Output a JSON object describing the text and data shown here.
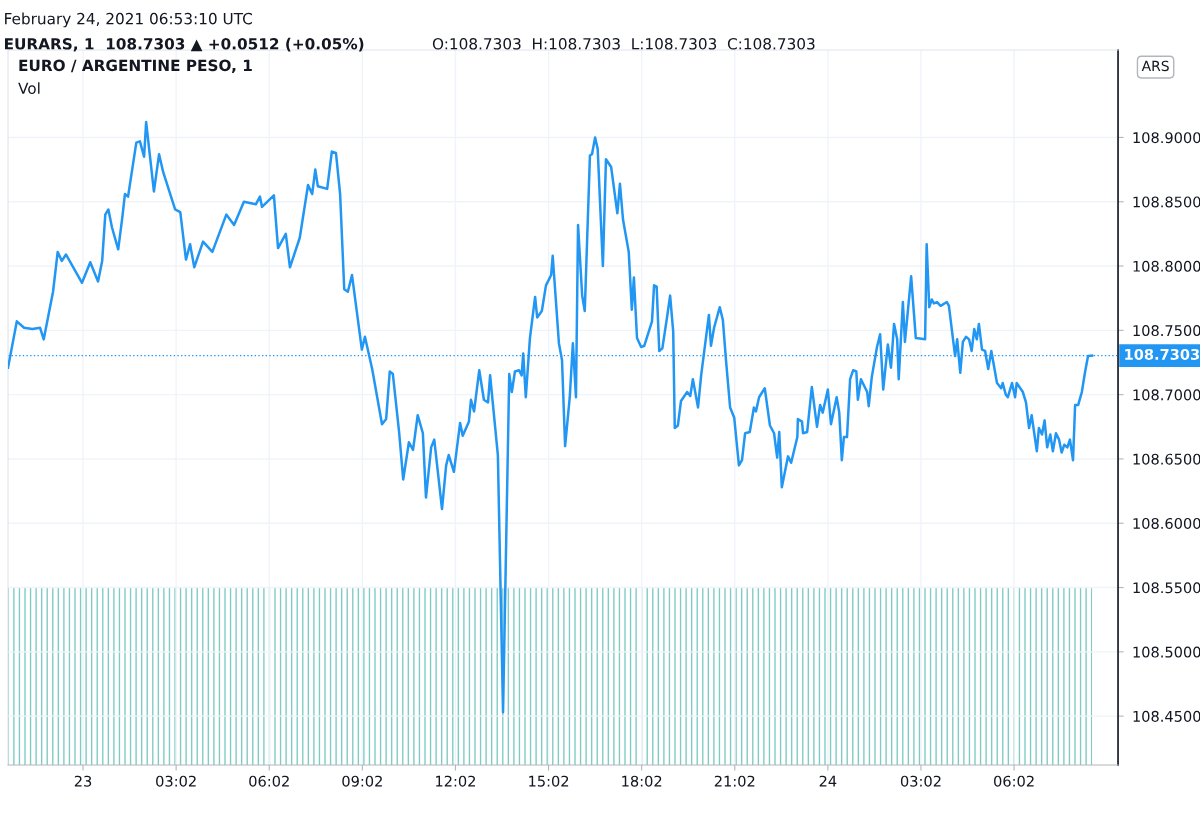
{
  "chart_data": {
    "type": "line",
    "title": "EURO / ARGENTINE PESO, 1",
    "annotations": [
      "February 24, 2021 06:53:10 UTC",
      "EURARS, 1  108.7303 ▲ +0.0512 (+0.05%)",
      "O:108.7303  H:108.7303  L:108.7303  C:108.7303",
      "ARS",
      "Vol"
    ],
    "x": [
      "2021-02-22T21:37",
      "2021-02-22T21:54",
      "2021-02-22T22:08",
      "2021-02-22T22:24",
      "2021-02-22T22:39",
      "2021-02-22T22:46",
      "2021-02-22T23:04",
      "2021-02-22T23:13",
      "2021-02-22T23:21",
      "2021-02-22T23:29",
      "2021-02-23T00:00",
      "2021-02-23T00:16",
      "2021-02-23T00:31",
      "2021-02-23T00:39",
      "2021-02-23T00:45",
      "2021-02-23T00:51",
      "2021-02-23T00:58",
      "2021-02-23T01:10",
      "2021-02-23T01:18",
      "2021-02-23T01:23",
      "2021-02-23T01:29",
      "2021-02-23T01:45",
      "2021-02-23T01:52",
      "2021-02-23T02:00",
      "2021-02-23T02:04",
      "2021-02-23T02:19",
      "2021-02-23T02:29",
      "2021-02-23T02:37",
      "2021-02-23T03:00",
      "2021-02-23T03:10",
      "2021-02-23T03:21",
      "2021-02-23T03:29",
      "2021-02-23T03:37",
      "2021-02-23T03:54",
      "2021-02-23T04:12",
      "2021-02-23T04:39",
      "2021-02-23T04:54",
      "2021-02-23T05:13",
      "2021-02-23T05:36",
      "2021-02-23T05:44",
      "2021-02-23T05:48",
      "2021-02-23T06:11",
      "2021-02-23T06:19",
      "2021-02-23T06:34",
      "2021-02-23T06:42",
      "2021-02-23T07:01",
      "2021-02-23T07:17",
      "2021-02-23T07:25",
      "2021-02-23T07:31",
      "2021-02-23T07:36",
      "2021-02-23T07:54",
      "2021-02-23T08:03",
      "2021-02-23T08:11",
      "2021-02-23T08:19",
      "2021-02-23T08:27",
      "2021-02-23T08:34",
      "2021-02-23T08:42",
      "2021-02-23T09:01",
      "2021-02-23T09:07",
      "2021-02-23T09:21",
      "2021-02-23T09:40",
      "2021-02-23T09:48",
      "2021-02-23T09:55",
      "2021-02-23T10:01",
      "2021-02-23T10:13",
      "2021-02-23T10:21",
      "2021-02-23T10:32",
      "2021-02-23T10:40",
      "2021-02-23T10:49",
      "2021-02-23T10:59",
      "2021-02-23T11:05",
      "2021-02-23T11:15",
      "2021-02-23T11:21",
      "2021-02-23T11:36",
      "2021-02-23T11:44",
      "2021-02-23T11:49",
      "2021-02-23T11:59",
      "2021-02-23T12:11",
      "2021-02-23T12:16",
      "2021-02-23T12:28",
      "2021-02-23T12:32",
      "2021-02-23T12:38",
      "2021-02-23T12:48",
      "2021-02-23T12:57",
      "2021-02-23T13:05",
      "2021-02-23T13:09",
      "2021-02-23T13:24",
      "2021-02-23T13:34",
      "2021-02-23T13:46",
      "2021-02-23T13:51",
      "2021-02-23T13:57",
      "2021-02-23T14:05",
      "2021-02-23T14:10",
      "2021-02-23T14:13",
      "2021-02-23T14:18",
      "2021-02-23T14:26",
      "2021-02-23T14:36",
      "2021-02-23T14:40",
      "2021-02-23T14:49",
      "2021-02-23T14:57",
      "2021-02-23T15:07",
      "2021-02-23T15:10",
      "2021-02-23T15:22",
      "2021-02-23T15:28",
      "2021-02-23T15:34",
      "2021-02-23T15:43",
      "2021-02-23T15:49",
      "2021-02-23T15:55",
      "2021-02-23T15:59",
      "2021-02-23T16:07",
      "2021-02-23T16:12",
      "2021-02-23T16:22",
      "2021-02-23T16:26",
      "2021-02-23T16:32",
      "2021-02-23T16:37",
      "2021-02-23T16:47",
      "2021-02-23T16:53",
      "2021-02-23T17:03",
      "2021-02-23T17:15",
      "2021-02-23T17:20",
      "2021-02-23T17:26",
      "2021-02-23T17:37",
      "2021-02-23T17:43",
      "2021-02-23T17:47",
      "2021-02-23T17:53",
      "2021-02-23T18:01",
      "2021-02-23T18:07",
      "2021-02-23T18:22",
      "2021-02-23T18:26",
      "2021-02-23T18:31",
      "2021-02-23T18:36",
      "2021-02-23T18:42",
      "2021-02-23T18:51",
      "2021-02-23T18:57",
      "2021-02-23T19:03",
      "2021-02-23T19:06",
      "2021-02-23T19:12",
      "2021-02-23T19:18",
      "2021-02-23T19:30",
      "2021-02-23T19:36",
      "2021-02-23T19:41",
      "2021-02-23T19:51",
      "2021-02-23T19:57",
      "2021-02-23T20:12",
      "2021-02-23T20:16",
      "2021-02-23T20:22",
      "2021-02-23T20:33",
      "2021-02-23T20:39",
      "2021-02-23T20:45",
      "2021-02-23T20:53",
      "2021-02-23T21:01",
      "2021-02-23T21:10",
      "2021-02-23T21:16",
      "2021-02-23T21:22",
      "2021-02-23T21:31",
      "2021-02-23T21:39",
      "2021-02-23T21:43",
      "2021-02-23T21:49",
      "2021-02-23T22:00",
      "2021-02-23T22:10",
      "2021-02-23T22:18",
      "2021-02-23T22:24",
      "2021-02-23T22:28",
      "2021-02-23T22:33",
      "2021-02-23T22:45",
      "2021-02-23T22:51",
      "2021-02-23T23:03",
      "2021-02-23T23:04",
      "2021-02-23T23:12",
      "2021-02-23T23:14",
      "2021-02-23T23:22",
      "2021-02-23T23:31",
      "2021-02-23T23:41",
      "2021-02-23T23:47",
      "2021-02-23T23:52",
      "2021-02-24T00:02",
      "2021-02-24T00:08",
      "2021-02-24T00:19",
      "2021-02-24T00:24",
      "2021-02-24T00:29",
      "2021-02-24T00:33",
      "2021-02-24T00:39",
      "2021-02-24T00:45",
      "2021-02-24T00:51",
      "2021-02-24T00:57",
      "2021-02-24T01:00",
      "2021-02-24T01:06",
      "2021-02-24T01:18",
      "2021-02-24T01:21",
      "2021-02-24T01:27",
      "2021-02-24T01:37",
      "2021-02-24T01:43",
      "2021-02-24T01:49",
      "2021-02-24T01:58",
      "2021-02-24T02:04",
      "2021-02-24T02:10",
      "2021-02-24T02:16",
      "2021-02-24T02:19",
      "2021-02-24T02:27",
      "2021-02-24T02:31",
      "2021-02-24T02:43",
      "2021-02-24T02:52",
      "2021-02-24T03:10",
      "2021-02-24T03:13",
      "2021-02-24T03:18",
      "2021-02-24T03:23",
      "2021-02-24T03:27",
      "2021-02-24T03:33",
      "2021-02-24T03:40",
      "2021-02-24T03:52",
      "2021-02-24T03:56",
      "2021-02-24T04:08",
      "2021-02-24T04:12",
      "2021-02-24T04:18",
      "2021-02-24T04:23",
      "2021-02-24T04:29",
      "2021-02-24T04:35",
      "2021-02-24T04:40",
      "2021-02-24T04:45",
      "2021-02-24T04:50",
      "2021-02-24T04:54",
      "2021-02-24T05:00",
      "2021-02-24T05:06",
      "2021-02-24T05:12",
      "2021-02-24T05:18",
      "2021-02-24T05:29",
      "2021-02-24T05:37",
      "2021-02-24T05:40",
      "2021-02-24T05:46",
      "2021-02-24T05:50",
      "2021-02-24T05:58",
      "2021-02-24T06:04",
      "2021-02-24T06:07",
      "2021-02-24T06:19",
      "2021-02-24T06:25",
      "2021-02-24T06:31",
      "2021-02-24T06:36",
      "2021-02-24T06:46",
      "2021-02-24T06:50",
      "2021-02-24T06:56",
      "2021-02-24T07:01",
      "2021-02-24T07:06",
      "2021-02-24T07:12",
      "2021-02-24T07:17",
      "2021-02-24T07:23",
      "2021-02-24T07:29",
      "2021-02-24T07:34",
      "2021-02-24T07:39",
      "2021-02-24T07:45",
      "2021-02-24T07:50",
      "2021-02-24T07:56",
      "2021-02-24T08:00",
      "2021-02-24T08:06",
      "2021-02-24T08:13",
      "2021-02-24T08:19",
      "2021-02-24T08:25",
      "2021-02-24T08:33"
    ],
    "series": [
      {
        "color": "#2196f3",
        "values": [
          108.721,
          108.757,
          108.752,
          108.751,
          108.752,
          108.743,
          108.78,
          108.811,
          108.804,
          108.809,
          108.787,
          108.803,
          108.788,
          108.804,
          108.84,
          108.844,
          108.83,
          108.813,
          108.838,
          108.856,
          108.854,
          108.896,
          108.897,
          108.885,
          108.912,
          108.858,
          108.887,
          108.873,
          108.844,
          108.842,
          108.805,
          108.817,
          108.799,
          108.819,
          108.811,
          108.84,
          108.832,
          108.85,
          108.848,
          108.854,
          108.846,
          108.855,
          108.814,
          108.825,
          108.799,
          108.822,
          108.863,
          108.856,
          108.875,
          108.862,
          108.86,
          108.889,
          108.888,
          108.856,
          108.782,
          108.78,
          108.793,
          108.735,
          108.745,
          108.72,
          108.677,
          108.681,
          108.718,
          108.716,
          108.671,
          108.634,
          108.663,
          108.657,
          108.684,
          108.67,
          108.62,
          108.659,
          108.665,
          108.611,
          108.645,
          108.653,
          108.64,
          108.678,
          108.668,
          108.679,
          108.696,
          108.687,
          108.719,
          108.696,
          108.694,
          108.715,
          108.653,
          108.453,
          108.716,
          108.702,
          108.718,
          108.719,
          108.715,
          108.732,
          108.698,
          108.744,
          108.776,
          108.76,
          108.765,
          108.785,
          108.793,
          108.808,
          108.74,
          108.727,
          108.66,
          108.698,
          108.74,
          108.698,
          108.832,
          108.777,
          108.765,
          108.886,
          108.887,
          108.9,
          108.891,
          108.8,
          108.883,
          108.877,
          108.841,
          108.864,
          108.836,
          108.811,
          108.766,
          108.791,
          108.744,
          108.737,
          108.738,
          108.757,
          108.785,
          108.784,
          108.734,
          108.736,
          108.76,
          108.777,
          108.749,
          108.674,
          108.676,
          108.695,
          108.702,
          108.699,
          108.712,
          108.69,
          108.715,
          108.762,
          108.738,
          108.752,
          108.768,
          108.758,
          108.727,
          108.69,
          108.682,
          108.645,
          108.649,
          108.67,
          108.671,
          108.69,
          108.687,
          108.698,
          108.705,
          108.676,
          108.67,
          108.651,
          108.671,
          108.628,
          108.652,
          108.647,
          108.667,
          108.681,
          108.679,
          108.67,
          108.671,
          108.706,
          108.675,
          108.692,
          108.686,
          108.704,
          108.677,
          108.698,
          108.686,
          108.649,
          108.667,
          108.667,
          108.712,
          108.719,
          108.718,
          108.696,
          108.712,
          108.702,
          108.691,
          108.714,
          108.737,
          108.747,
          108.704,
          108.739,
          108.721,
          108.755,
          108.743,
          108.712,
          108.772,
          108.741,
          108.792,
          108.744,
          108.743,
          108.817,
          108.768,
          108.774,
          108.771,
          108.772,
          108.769,
          108.772,
          108.769,
          108.73,
          108.743,
          108.717,
          108.741,
          108.745,
          108.743,
          108.734,
          108.751,
          108.743,
          108.755,
          108.735,
          108.734,
          108.72,
          108.734,
          108.709,
          108.705,
          108.709,
          108.7,
          108.698,
          108.709,
          108.698,
          108.709,
          108.702,
          108.694,
          108.674,
          108.684,
          108.656,
          108.674,
          108.669,
          108.68,
          108.659,
          108.669,
          108.656,
          108.67,
          108.665,
          108.655,
          108.661,
          108.659,
          108.665,
          108.649,
          108.692,
          108.692,
          108.702,
          108.717,
          108.73,
          108.7303
        ]
      }
    ],
    "xlim": [
      "2021-02-22T21:37",
      "2021-02-24T09:23"
    ],
    "xticks": [
      {
        "value": "2021-02-23T00:02",
        "label": "23"
      },
      {
        "value": "2021-02-23T03:02",
        "label": "03:02"
      },
      {
        "value": "2021-02-23T06:02",
        "label": "06:02"
      },
      {
        "value": "2021-02-23T09:02",
        "label": "09:02"
      },
      {
        "value": "2021-02-23T12:02",
        "label": "12:02"
      },
      {
        "value": "2021-02-23T15:02",
        "label": "15:02"
      },
      {
        "value": "2021-02-23T18:02",
        "label": "18:02"
      },
      {
        "value": "2021-02-23T21:02",
        "label": "21:02"
      },
      {
        "value": "2021-02-24T00:02",
        "label": "24"
      },
      {
        "value": "2021-02-24T03:02",
        "label": "03:02"
      },
      {
        "value": "2021-02-24T06:02",
        "label": "06:02"
      }
    ],
    "ylim": [
      108.412,
      108.968
    ],
    "yticks": [
      {
        "value": 108.45,
        "label": "108.4500"
      },
      {
        "value": 108.5,
        "label": "108.5000"
      },
      {
        "value": 108.55,
        "label": "108.5500"
      },
      {
        "value": 108.6,
        "label": "108.6000"
      },
      {
        "value": 108.65,
        "label": "108.6500"
      },
      {
        "value": 108.7,
        "label": "108.7000"
      },
      {
        "value": 108.75,
        "label": "108.7500"
      },
      {
        "value": 108.8,
        "label": "108.8000"
      },
      {
        "value": 108.85,
        "label": "108.8500"
      },
      {
        "value": 108.9,
        "label": "108.9000"
      }
    ],
    "ref_lines": [
      {
        "axis": "y",
        "value": 108.7303,
        "label": "108.7303",
        "color": "#2196f3",
        "line_style": "dotted"
      }
    ],
    "grid": true
  }
}
